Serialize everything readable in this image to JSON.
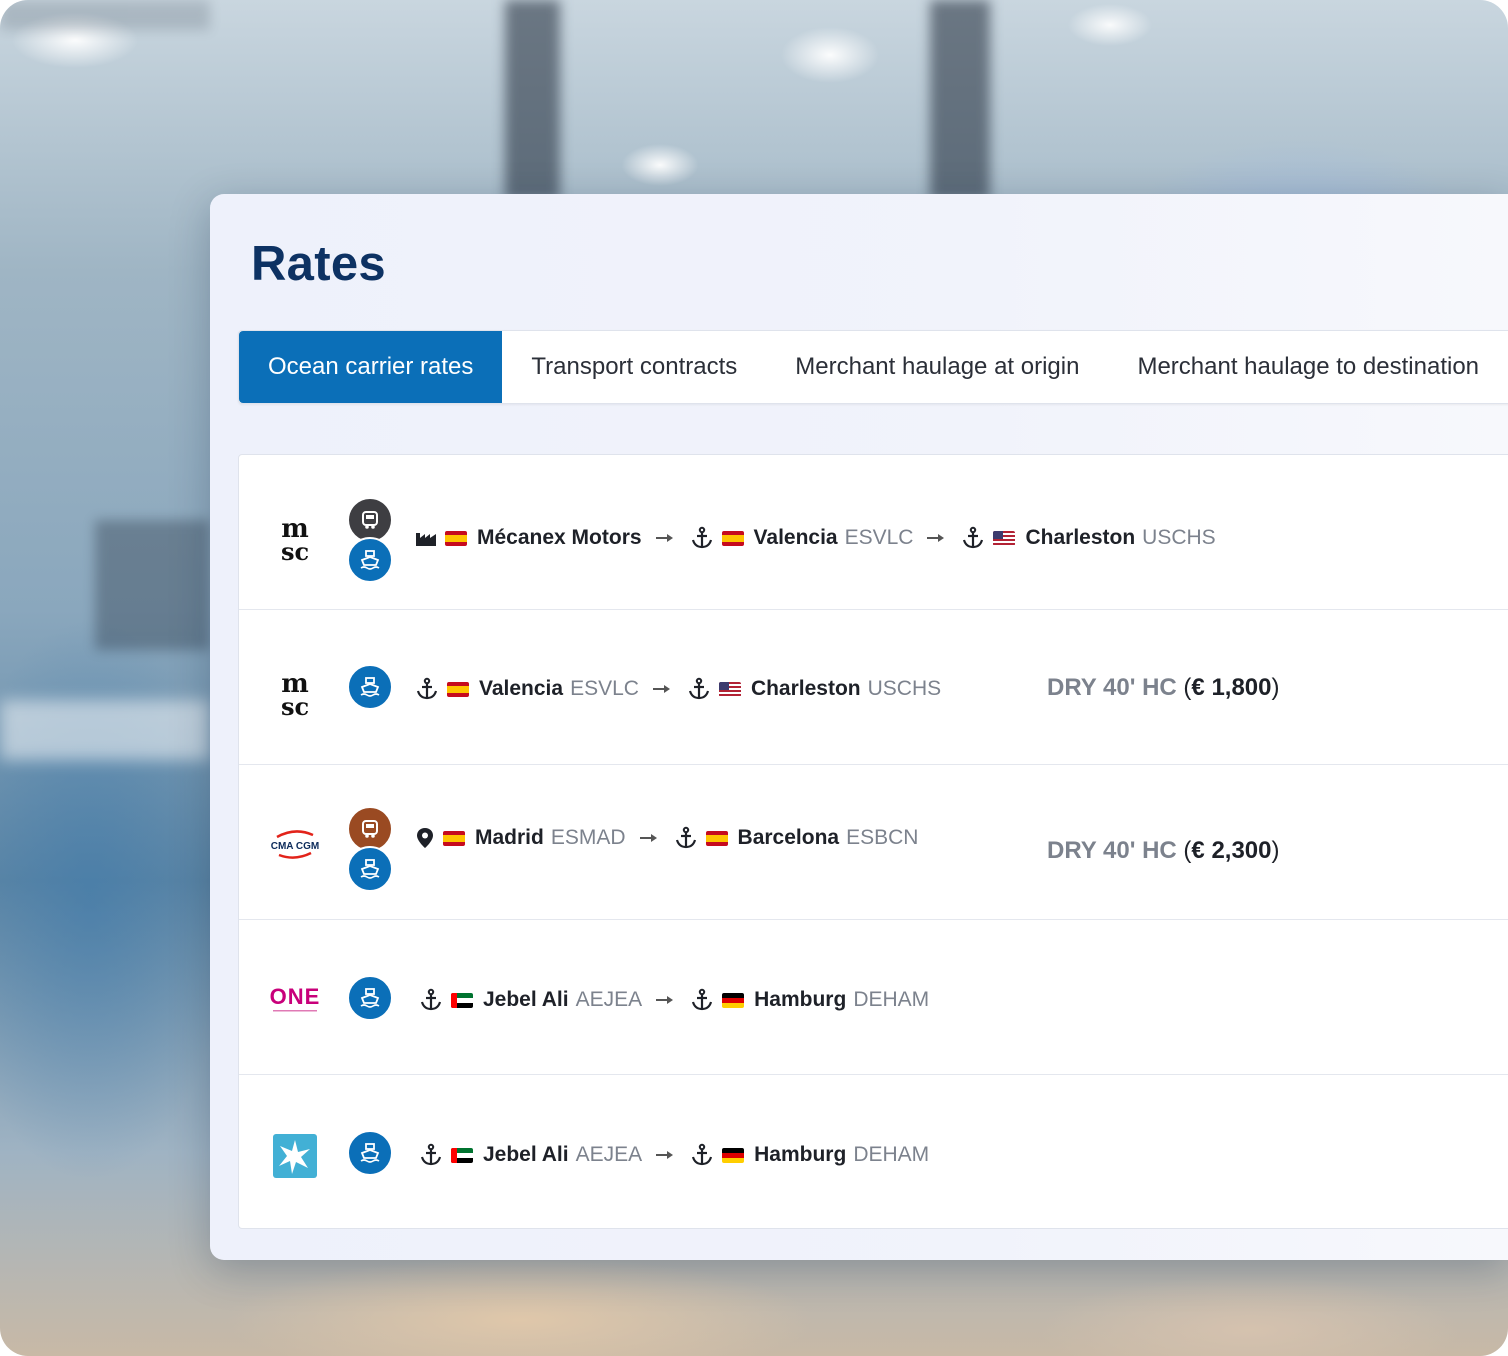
{
  "page": {
    "title": "Rates"
  },
  "tabs": [
    {
      "label": "Ocean carrier rates",
      "active": true
    },
    {
      "label": "Transport contracts",
      "active": false
    },
    {
      "label": "Merchant haulage at origin",
      "active": false
    },
    {
      "label": "Merchant haulage to destination",
      "active": false
    }
  ],
  "colors": {
    "accent": "#0b6fb8",
    "title": "#0d3263",
    "code_text": "#7c828d"
  },
  "rates": [
    {
      "carrier": {
        "name": "msc",
        "logo_text": [
          "m",
          "sc"
        ]
      },
      "modes": [
        "truck",
        "sea"
      ],
      "origin": {
        "type": "factory",
        "flag": "ES",
        "name": "Mécanex Motors"
      },
      "via": {
        "type": "port",
        "flag": "ES",
        "name": "Valencia",
        "code": "ESVLC"
      },
      "destination": {
        "type": "port",
        "flag": "US",
        "name": "Charleston",
        "code": "USCHS"
      }
    },
    {
      "carrier": {
        "name": "msc",
        "logo_text": [
          "m",
          "sc"
        ]
      },
      "modes": [
        "sea"
      ],
      "origin": {
        "type": "port",
        "flag": "ES",
        "name": "Valencia",
        "code": "ESVLC"
      },
      "destination": {
        "type": "port",
        "flag": "US",
        "name": "Charleston",
        "code": "USCHS"
      },
      "container": "DRY 40' HC",
      "price": "€ 1,800"
    },
    {
      "carrier": {
        "name": "CMA CGM",
        "logo_text": [
          "CMA CGM"
        ]
      },
      "modes": [
        "truck",
        "sea"
      ],
      "origin": {
        "type": "location",
        "flag": "ES",
        "name": "Madrid",
        "code": "ESMAD"
      },
      "destination": {
        "type": "port",
        "flag": "ES",
        "name": "Barcelona",
        "code": "ESBCN"
      },
      "container": "DRY 40' HC",
      "price": "€ 2,300"
    },
    {
      "carrier": {
        "name": "ONE",
        "logo_text": [
          "ONE"
        ]
      },
      "modes": [
        "sea"
      ],
      "origin": {
        "type": "port",
        "flag": "AE",
        "name": "Jebel Ali",
        "code": "AEJEA"
      },
      "destination": {
        "type": "port",
        "flag": "DE",
        "name": "Hamburg",
        "code": "DEHAM"
      }
    },
    {
      "carrier": {
        "name": "Maersk",
        "logo_icon": "star-icon"
      },
      "modes": [
        "sea"
      ],
      "origin": {
        "type": "port",
        "flag": "AE",
        "name": "Jebel Ali",
        "code": "AEJEA"
      },
      "destination": {
        "type": "port",
        "flag": "DE",
        "name": "Hamburg",
        "code": "DEHAM"
      }
    }
  ]
}
